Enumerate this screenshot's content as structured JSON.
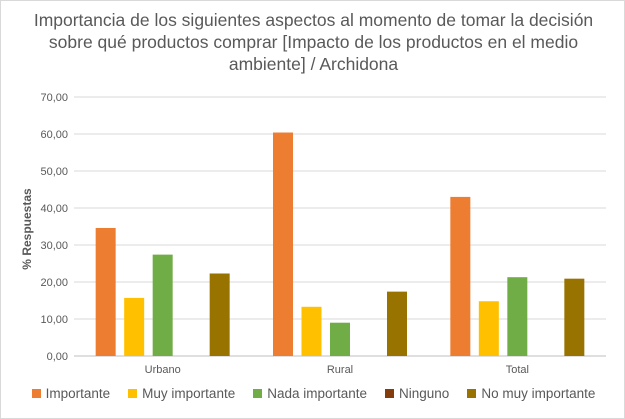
{
  "chart_data": {
    "type": "bar",
    "title": "Importancia de los siguientes aspectos al momento de tomar la decisión sobre qué productos comprar [Impacto de los productos en el medio ambiente] / Archidona",
    "ylabel": "% Respuestas",
    "xlabel": "",
    "ylim": [
      0,
      70
    ],
    "yticks": [
      "0,00",
      "10,00",
      "20,00",
      "30,00",
      "40,00",
      "50,00",
      "60,00",
      "70,00"
    ],
    "grid": true,
    "legend_position": "bottom",
    "categories": [
      "Urbano",
      "Rural",
      "Total"
    ],
    "series": [
      {
        "name": "Importante",
        "color": "#ed7d31",
        "values": [
          34.6,
          60.4,
          43.0
        ]
      },
      {
        "name": "Muy importante",
        "color": "#ffc000",
        "values": [
          15.7,
          13.3,
          14.8
        ]
      },
      {
        "name": "Nada importante",
        "color": "#70ad47",
        "values": [
          27.4,
          9.0,
          21.3
        ]
      },
      {
        "name": "Ninguno",
        "color": "#843c0c",
        "values": [
          0,
          0,
          0
        ]
      },
      {
        "name": "No muy importante",
        "color": "#997300",
        "values": [
          22.3,
          17.4,
          20.9
        ]
      }
    ]
  }
}
